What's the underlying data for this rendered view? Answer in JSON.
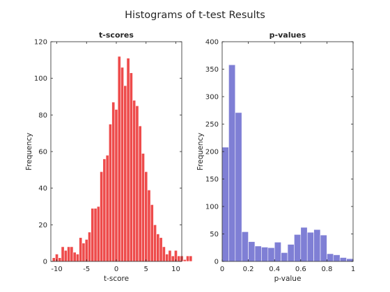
{
  "figure_title": "Histograms of t-test Results",
  "chart_data": [
    {
      "type": "bar",
      "title": "t-scores",
      "xlabel": "t-score",
      "ylabel": "Frequency",
      "xlim": [
        -11,
        11
      ],
      "ylim": [
        0,
        120
      ],
      "xticks": [
        -10,
        -5,
        0,
        5,
        10
      ],
      "yticks": [
        0,
        20,
        40,
        60,
        80,
        100,
        120
      ],
      "grid": false,
      "color": "#ee4b4b",
      "bin_edges_start": -10.75,
      "bin_width": 0.5,
      "values": [
        2,
        4,
        2,
        8,
        6,
        8,
        8,
        5,
        4,
        13,
        10,
        12,
        16,
        29,
        29,
        30,
        49,
        56,
        58,
        75,
        87,
        83,
        112,
        106,
        96,
        111,
        103,
        88,
        85,
        74,
        59,
        49,
        39,
        31,
        20,
        15,
        13,
        8,
        4,
        6,
        3,
        6,
        3,
        3,
        1,
        3,
        3
      ]
    },
    {
      "type": "bar",
      "title": "p-values",
      "xlabel": "p-value",
      "ylabel": "Frequency",
      "xlim": [
        0,
        1
      ],
      "ylim": [
        0,
        400
      ],
      "xticks": [
        0,
        0.2,
        0.4,
        0.6,
        0.8,
        1
      ],
      "yticks": [
        0,
        50,
        100,
        150,
        200,
        250,
        300,
        350,
        400
      ],
      "grid": false,
      "color": "#7f7fd5",
      "bin_edges_start": 0,
      "bin_width": 0.05,
      "values": [
        208,
        358,
        271,
        54,
        36,
        28,
        26,
        25,
        35,
        16,
        31,
        49,
        62,
        53,
        58,
        48,
        14,
        12,
        7,
        5
      ]
    }
  ]
}
